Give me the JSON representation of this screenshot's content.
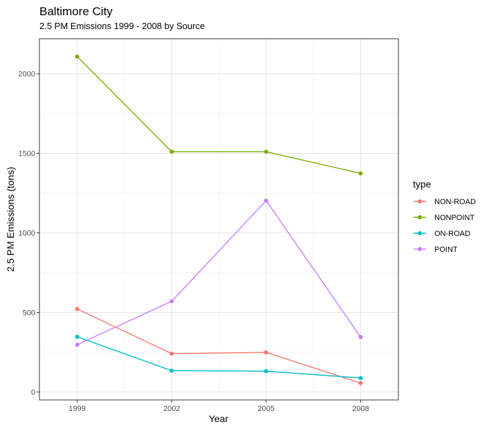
{
  "chart_data": {
    "type": "line",
    "title": "Baltimore City",
    "subtitle": "2.5 PM Emissions 1999 - 2008 by Source",
    "xlabel": "Year",
    "ylabel": "2.5 PM Emissions (tons)",
    "x": [
      1999,
      2002,
      2005,
      2008
    ],
    "xlim": [
      1997.8,
      2009.2
    ],
    "ylim": [
      -50,
      2220
    ],
    "x_ticks": [
      "1999",
      "2002",
      "2005",
      "2008"
    ],
    "y_ticks": [
      0,
      500,
      1000,
      1500,
      2000
    ],
    "y_tick_labels": [
      "0",
      "500",
      "1000",
      "1500",
      "2000"
    ],
    "grid": true,
    "legend_title": "type",
    "legend_position": "right",
    "series": [
      {
        "name": "NON-ROAD",
        "color": "#F8766D",
        "values": [
          522,
          241,
          249,
          56
        ]
      },
      {
        "name": "NONPOINT",
        "color": "#7CAE00",
        "values": [
          2108,
          1510,
          1510,
          1374
        ]
      },
      {
        "name": "ON-ROAD",
        "color": "#00BFC4",
        "values": [
          347,
          134,
          131,
          88
        ]
      },
      {
        "name": "POINT",
        "color": "#C77CFF",
        "values": [
          297,
          570,
          1203,
          345
        ]
      }
    ]
  }
}
